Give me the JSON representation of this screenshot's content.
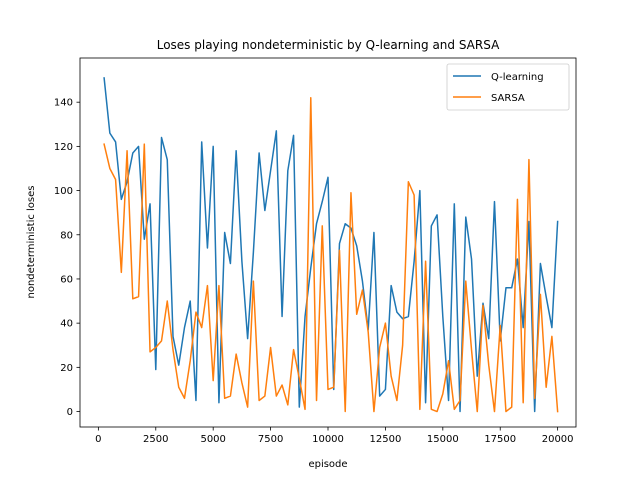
{
  "chart_data": {
    "type": "line",
    "title": "Loses playing nondeterministic by Q-learning and SARSA",
    "xlabel": "episode",
    "ylabel": "nondeterministic loses",
    "xlim": [
      -800,
      20800
    ],
    "ylim": [
      -7,
      160
    ],
    "xticks": [
      0,
      2500,
      5000,
      7500,
      10000,
      12500,
      15000,
      17500,
      20000
    ],
    "xtick_labels": [
      "0",
      "2500",
      "5000",
      "7500",
      "10000",
      "12500",
      "15000",
      "17500",
      "20000"
    ],
    "yticks": [
      0,
      20,
      40,
      60,
      80,
      100,
      120,
      140
    ],
    "ytick_labels": [
      "0",
      "20",
      "40",
      "60",
      "80",
      "100",
      "120",
      "140"
    ],
    "grid": false,
    "legend_position": "top-right",
    "x": [
      250,
      500,
      750,
      1000,
      1250,
      1500,
      1750,
      2000,
      2250,
      2500,
      2750,
      3000,
      3250,
      3500,
      3750,
      4000,
      4250,
      4500,
      4750,
      5000,
      5250,
      5500,
      5750,
      6000,
      6250,
      6500,
      6750,
      7000,
      7250,
      7500,
      7750,
      8000,
      8250,
      8500,
      8750,
      9000,
      9250,
      9500,
      9750,
      10000,
      10250,
      10500,
      10750,
      11000,
      11250,
      11500,
      11750,
      12000,
      12250,
      12500,
      12750,
      13000,
      13250,
      13500,
      13750,
      14000,
      14250,
      14500,
      14750,
      15000,
      15250,
      15500,
      15750,
      16000,
      16250,
      16500,
      16750,
      17000,
      17250,
      17500,
      17750,
      18000,
      18250,
      18500,
      18750,
      19000,
      19250,
      19500,
      19750,
      20000
    ],
    "series": [
      {
        "name": "Q-learning",
        "color": "#1f77b4",
        "values": [
          151,
          126,
          122,
          96,
          104,
          117,
          120,
          78,
          94,
          19,
          124,
          114,
          34,
          21,
          38,
          50,
          5,
          122,
          74,
          120,
          4,
          81,
          67,
          118,
          68,
          33,
          72,
          117,
          91,
          109,
          127,
          43,
          109,
          125,
          2,
          43,
          65,
          85,
          95,
          106,
          10,
          76,
          85,
          83,
          75,
          59,
          37,
          81,
          7,
          10,
          57,
          45,
          42,
          43,
          68,
          100,
          4,
          84,
          89,
          43,
          5,
          94,
          0,
          88,
          69,
          16,
          49,
          33,
          95,
          32,
          56,
          56,
          69,
          38,
          86,
          0,
          67,
          52,
          38,
          86
        ]
      },
      {
        "name": "SARSA",
        "color": "#ff7f0e",
        "values": [
          121,
          110,
          105,
          63,
          118,
          51,
          52,
          121,
          27,
          29,
          32,
          50,
          28,
          11,
          6,
          23,
          45,
          38,
          57,
          14,
          57,
          6,
          7,
          26,
          13,
          2,
          59,
          5,
          7,
          29,
          7,
          12,
          3,
          28,
          15,
          1,
          142,
          5,
          84,
          10,
          11,
          73,
          0,
          99,
          44,
          55,
          36,
          0,
          29,
          40,
          16,
          5,
          30,
          104,
          98,
          1,
          68,
          1,
          0,
          8,
          23,
          1,
          5,
          59,
          28,
          0,
          48,
          21,
          0,
          39,
          0,
          2,
          96,
          4,
          114,
          6,
          53,
          11,
          34,
          0
        ]
      }
    ]
  }
}
